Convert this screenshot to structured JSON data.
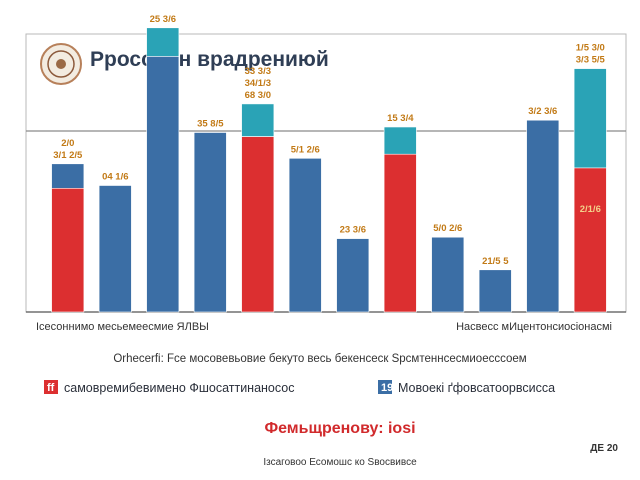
{
  "chart_data": {
    "type": "bar",
    "title": "Рроссийн врадрениюй",
    "series_colors": [
      "#dc2f30",
      "#3b6ea5",
      "#2aa3b6"
    ],
    "bars": [
      {
        "segments": [
          {
            "value": 91,
            "color": "#dc2f30"
          },
          {
            "value": 18,
            "color": "#3b6ea5"
          }
        ],
        "labels": [
          "2/0",
          "3/1 2/5"
        ]
      },
      {
        "segments": [
          {
            "value": 93,
            "color": "#3b6ea5"
          }
        ],
        "labels": [
          "04 1/6"
        ]
      },
      {
        "segments": [
          {
            "value": 188,
            "color": "#3b6ea5"
          },
          {
            "value": 21,
            "color": "#2aa3b6"
          }
        ],
        "labels": [
          "25 3/6"
        ]
      },
      {
        "segments": [
          {
            "value": 132,
            "color": "#3b6ea5"
          }
        ],
        "labels": [
          "35 8/5"
        ]
      },
      {
        "segments": [
          {
            "value": 129,
            "color": "#dc2f30"
          },
          {
            "value": 24,
            "color": "#2aa3b6"
          }
        ],
        "labels": [
          "33 3/3",
          "34/1/3",
          "68 3/0"
        ]
      },
      {
        "segments": [
          {
            "value": 113,
            "color": "#3b6ea5"
          }
        ],
        "labels": [
          "5/1 2/6"
        ]
      },
      {
        "segments": [
          {
            "value": 54,
            "color": "#3b6ea5"
          }
        ],
        "labels": [
          "23 3/6"
        ]
      },
      {
        "segments": [
          {
            "value": 116,
            "color": "#dc2f30"
          },
          {
            "value": 20,
            "color": "#2aa3b6"
          }
        ],
        "labels": [
          "15 3/4"
        ]
      },
      {
        "segments": [
          {
            "value": 55,
            "color": "#3b6ea5"
          }
        ],
        "labels": [
          "5/0 2/6"
        ]
      },
      {
        "segments": [
          {
            "value": 31,
            "color": "#3b6ea5"
          }
        ],
        "labels": [
          "21/5 5"
        ]
      },
      {
        "segments": [
          {
            "value": 141,
            "color": "#3b6ea5"
          }
        ],
        "labels": [
          "3/2 3/6"
        ]
      },
      {
        "segments": [
          {
            "value": 106,
            "color": "#dc2f30"
          },
          {
            "value": 73,
            "color": "#2aa3b6"
          }
        ],
        "labels": [
          "1/5 3/0",
          "3/3 5/5"
        ]
      }
    ],
    "ylim": [
      0,
      200
    ],
    "last_bar_label": "2/1/6",
    "left_axis_caption": "Ісесоннимо месьемеесмие ЯЛВЫ",
    "right_axis_caption": "Насвесс мИцентонсиосіонасмі",
    "subtitle": "Оrhесеrfі: Fсе мосовевьовие бекуто весь бекенсеск Sрсмтеннсесмиоесссоем",
    "legend": [
      {
        "color": "#dc2f30",
        "marker": "ff",
        "label": "самовремибевимено Фшосаттинаносос"
      },
      {
        "color": "#3b6ea5",
        "marker": "19",
        "label": "Мовоекі ґфовсатоорвсисса"
      }
    ],
    "highlight": "Фемьщренову: іоsі",
    "source": "Ізсаговоо Есомошс ко Sвосвивсе",
    "page_ref": "ДЕ 20",
    "logo": "seal-logo"
  }
}
